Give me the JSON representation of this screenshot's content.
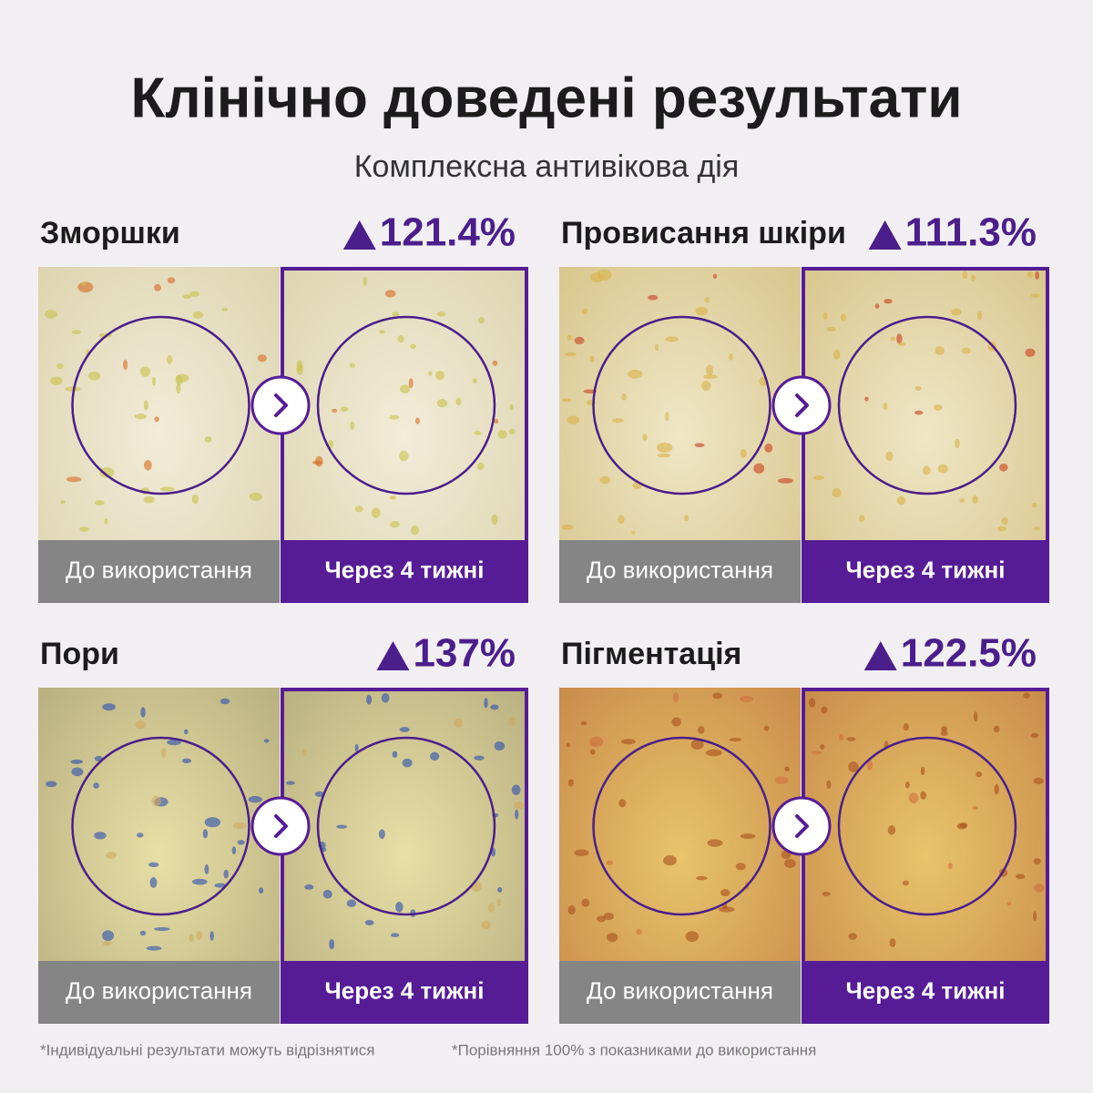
{
  "header": {
    "title": "Клінічно доведені результати",
    "subtitle": "Комплексна антивікова дія"
  },
  "panels": [
    {
      "label": "Зморшки",
      "change": "121.4%",
      "before": "До використання",
      "after": "Через 4 тижні"
    },
    {
      "label": "Провисання шкіри",
      "change": "111.3%",
      "before": "До використання",
      "after": "Через 4 тижні"
    },
    {
      "label": "Пори",
      "change": "137%",
      "before": "До використання",
      "after": "Через 4 тижні"
    },
    {
      "label": "Пігментація",
      "change": "122.5%",
      "before": "До використання",
      "after": "Через 4 тижні"
    }
  ],
  "footnotes": [
    "*Індивідуальні результати можуть відрізнятися",
    "*Порівняння 100% з показниками до використання"
  ]
}
